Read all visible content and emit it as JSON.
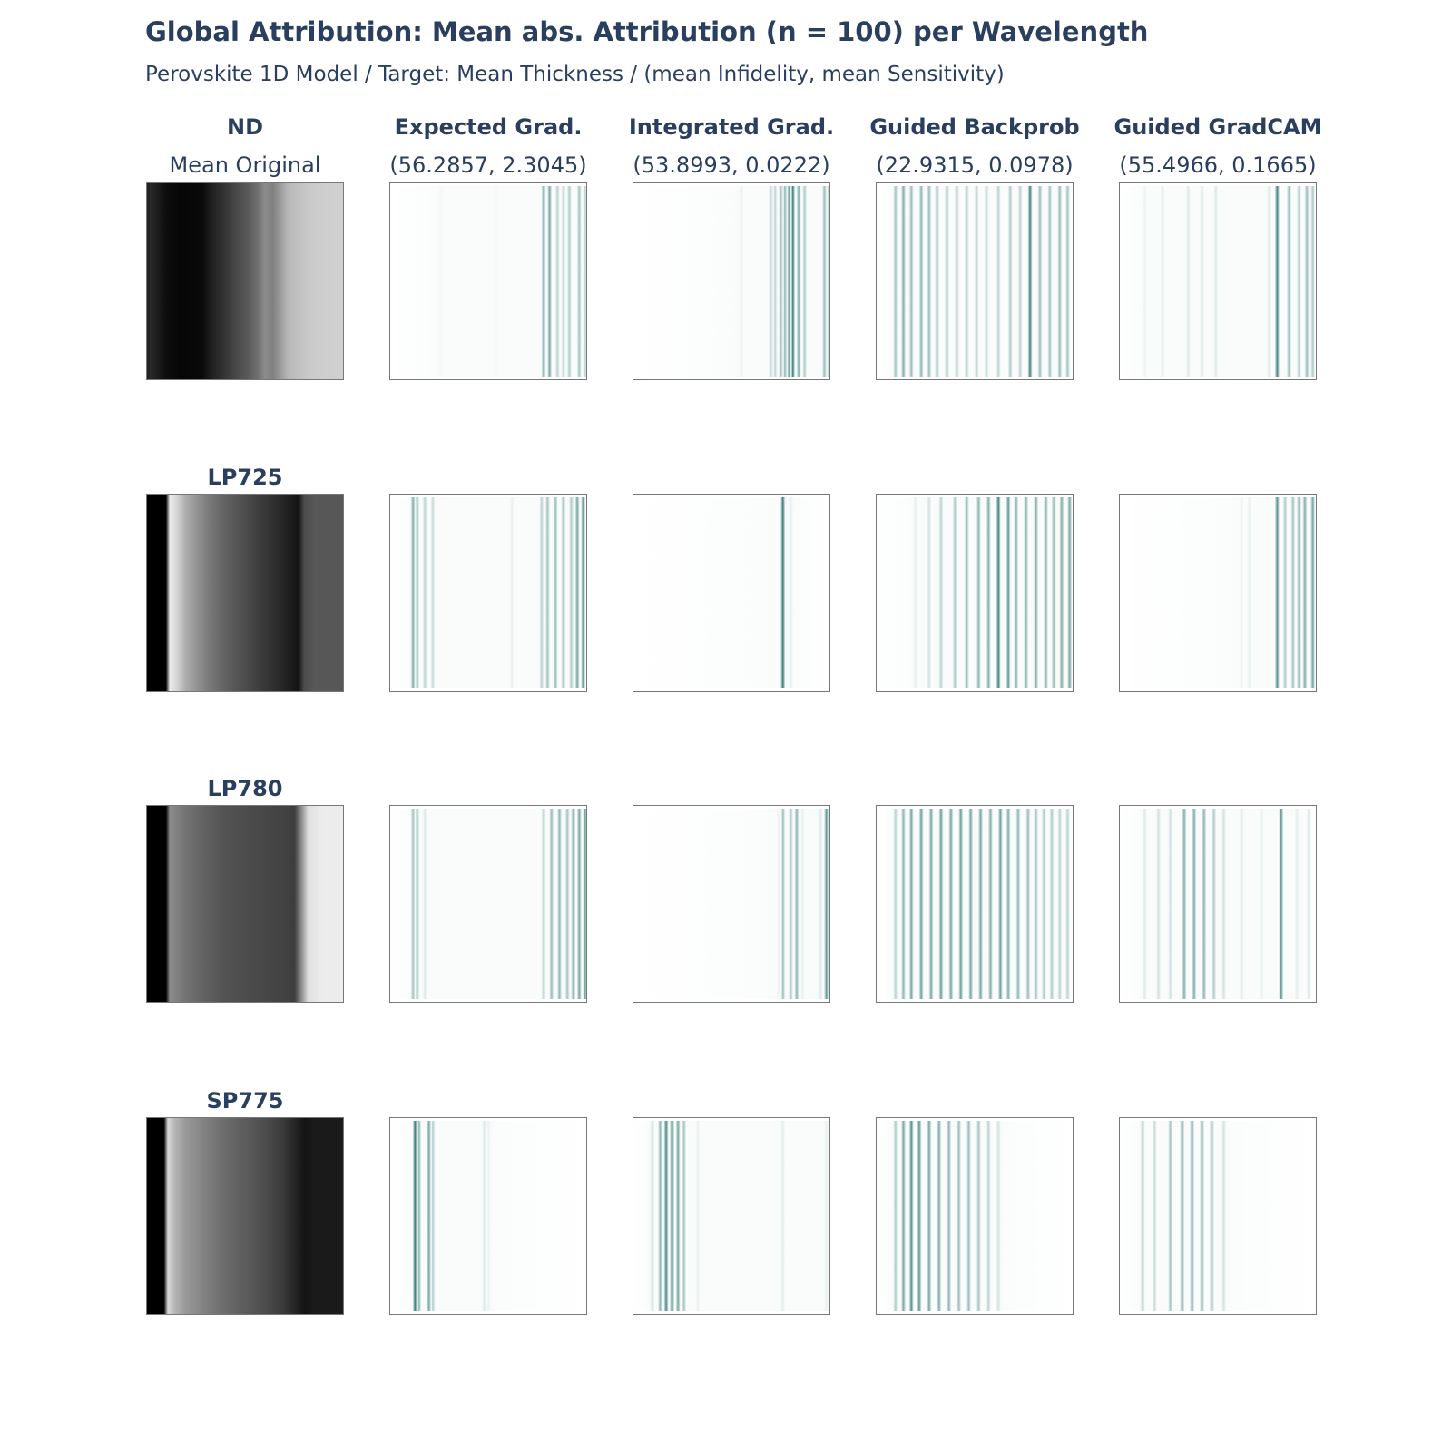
{
  "title": "Global Attribution: Mean abs. Attribution (n = 100) per Wavelength",
  "subtitle": "Perovskite 1D Model / Target: Mean Thickness / (mean Infidelity, mean Sensitivity)",
  "chart_data": {
    "type": "heatmap",
    "columns": [
      {
        "name": "ND",
        "metric": "Mean Original"
      },
      {
        "name": "Expected Grad.",
        "metric": "(56.2857, 2.3045)"
      },
      {
        "name": "Integrated Grad.",
        "metric": "(53.8993, 0.0222)"
      },
      {
        "name": "Guided Backprob",
        "metric": "(22.9315, 0.0978)"
      },
      {
        "name": "Guided GradCAM",
        "metric": "(55.4966, 0.1665)"
      }
    ],
    "rows": [
      "ND",
      "LP725",
      "LP780",
      "SP775"
    ],
    "colors": {
      "attribution": "#1a6b64",
      "original_dark": "#000000",
      "original_light": "#ffffff",
      "text": "#2a3f5f",
      "frame": "#777777"
    },
    "grid": false,
    "panels": [
      {
        "row": "ND",
        "original": [
          [
            0,
            0.1
          ],
          [
            0.02,
            0.16
          ],
          [
            0.05,
            0.12
          ],
          [
            0.1,
            0.05
          ],
          [
            0.18,
            0.02
          ],
          [
            0.28,
            0.04
          ],
          [
            0.35,
            0.15
          ],
          [
            0.45,
            0.28
          ],
          [
            0.52,
            0.36
          ],
          [
            0.57,
            0.45
          ],
          [
            0.6,
            0.55
          ],
          [
            0.64,
            0.5
          ],
          [
            0.72,
            0.72
          ],
          [
            0.79,
            0.77
          ],
          [
            0.85,
            0.8
          ],
          [
            1,
            0.82
          ]
        ],
        "expected_grad": [
          [
            0.26,
            0.05
          ],
          [
            0.54,
            0.04
          ],
          [
            0.78,
            0.55
          ],
          [
            0.81,
            0.6
          ],
          [
            0.85,
            0.3
          ],
          [
            0.88,
            0.25
          ],
          [
            0.91,
            0.35
          ],
          [
            0.96,
            0.4
          ],
          [
            0.99,
            0.3
          ]
        ],
        "integrated_grad": [
          [
            0.55,
            0.1
          ],
          [
            0.7,
            0.25
          ],
          [
            0.72,
            0.3
          ],
          [
            0.75,
            0.4
          ],
          [
            0.77,
            0.5
          ],
          [
            0.79,
            0.65
          ],
          [
            0.81,
            0.9
          ],
          [
            0.84,
            0.55
          ],
          [
            0.87,
            0.35
          ],
          [
            0.97,
            0.45
          ],
          [
            0.99,
            0.3
          ]
        ],
        "guided_backprob": [
          [
            0.1,
            0.4
          ],
          [
            0.14,
            0.55
          ],
          [
            0.18,
            0.45
          ],
          [
            0.23,
            0.5
          ],
          [
            0.27,
            0.45
          ],
          [
            0.31,
            0.4
          ],
          [
            0.36,
            0.35
          ],
          [
            0.41,
            0.32
          ],
          [
            0.46,
            0.3
          ],
          [
            0.51,
            0.28
          ],
          [
            0.56,
            0.25
          ],
          [
            0.62,
            0.3
          ],
          [
            0.68,
            0.35
          ],
          [
            0.73,
            0.3
          ],
          [
            0.78,
            0.85
          ],
          [
            0.83,
            0.45
          ],
          [
            0.88,
            0.4
          ],
          [
            0.93,
            0.45
          ],
          [
            0.97,
            0.4
          ]
        ],
        "guided_gradcam": [
          [
            0.13,
            0.08
          ],
          [
            0.22,
            0.12
          ],
          [
            0.35,
            0.15
          ],
          [
            0.42,
            0.15
          ],
          [
            0.49,
            0.15
          ],
          [
            0.76,
            0.15
          ],
          [
            0.8,
            0.85
          ],
          [
            0.86,
            0.45
          ],
          [
            0.91,
            0.3
          ],
          [
            0.95,
            0.45
          ],
          [
            0.98,
            0.35
          ]
        ]
      },
      {
        "row": "LP725",
        "original": [
          [
            0,
            0
          ],
          [
            0.1,
            0
          ],
          [
            0.12,
            0.92
          ],
          [
            0.15,
            0.85
          ],
          [
            0.2,
            0.68
          ],
          [
            0.3,
            0.5
          ],
          [
            0.4,
            0.38
          ],
          [
            0.5,
            0.3
          ],
          [
            0.6,
            0.22
          ],
          [
            0.7,
            0.14
          ],
          [
            0.77,
            0.08
          ],
          [
            0.8,
            0.3
          ],
          [
            0.85,
            0.34
          ],
          [
            1,
            0.34
          ]
        ],
        "expected_grad": [
          [
            0.12,
            0.55
          ],
          [
            0.14,
            0.45
          ],
          [
            0.18,
            0.3
          ],
          [
            0.22,
            0.25
          ],
          [
            0.62,
            0.1
          ],
          [
            0.77,
            0.3
          ],
          [
            0.8,
            0.4
          ],
          [
            0.84,
            0.45
          ],
          [
            0.88,
            0.4
          ],
          [
            0.92,
            0.35
          ],
          [
            0.95,
            0.6
          ],
          [
            0.98,
            0.7
          ]
        ],
        "integrated_grad": [
          [
            0.77,
            0.08
          ],
          [
            0.8,
            0.12
          ],
          [
            0.76,
            0.9
          ]
        ],
        "guided_backprob": [
          [
            0.2,
            0.1
          ],
          [
            0.27,
            0.2
          ],
          [
            0.33,
            0.3
          ],
          [
            0.4,
            0.35
          ],
          [
            0.46,
            0.45
          ],
          [
            0.52,
            0.5
          ],
          [
            0.57,
            0.55
          ],
          [
            0.62,
            0.85
          ],
          [
            0.67,
            0.7
          ],
          [
            0.71,
            0.5
          ],
          [
            0.76,
            0.5
          ],
          [
            0.81,
            0.55
          ],
          [
            0.86,
            0.5
          ],
          [
            0.9,
            0.45
          ],
          [
            0.94,
            0.55
          ],
          [
            0.98,
            0.6
          ]
        ],
        "guided_gradcam": [
          [
            0.62,
            0.08
          ],
          [
            0.66,
            0.1
          ],
          [
            0.8,
            0.75
          ],
          [
            0.84,
            0.35
          ],
          [
            0.88,
            0.4
          ],
          [
            0.91,
            0.45
          ],
          [
            0.94,
            0.55
          ],
          [
            0.98,
            0.6
          ]
        ]
      },
      {
        "row": "LP780",
        "original": [
          [
            0,
            0
          ],
          [
            0.1,
            0
          ],
          [
            0.12,
            0.55
          ],
          [
            0.2,
            0.45
          ],
          [
            0.3,
            0.38
          ],
          [
            0.4,
            0.32
          ],
          [
            0.5,
            0.3
          ],
          [
            0.6,
            0.28
          ],
          [
            0.7,
            0.26
          ],
          [
            0.75,
            0.24
          ],
          [
            0.78,
            0.5
          ],
          [
            0.82,
            0.88
          ],
          [
            0.88,
            0.92
          ],
          [
            1,
            0.93
          ]
        ],
        "expected_grad": [
          [
            0.12,
            0.4
          ],
          [
            0.14,
            0.45
          ],
          [
            0.18,
            0.15
          ],
          [
            0.78,
            0.3
          ],
          [
            0.82,
            0.45
          ],
          [
            0.86,
            0.5
          ],
          [
            0.9,
            0.4
          ],
          [
            0.93,
            0.5
          ],
          [
            0.96,
            0.6
          ],
          [
            0.99,
            0.65
          ]
        ],
        "integrated_grad": [
          [
            0.74,
            0.08
          ],
          [
            0.76,
            0.45
          ],
          [
            0.8,
            0.35
          ],
          [
            0.83,
            0.5
          ],
          [
            0.86,
            0.1
          ],
          [
            0.95,
            0.15
          ],
          [
            0.98,
            0.7
          ]
        ],
        "guided_backprob": [
          [
            0.1,
            0.3
          ],
          [
            0.14,
            0.5
          ],
          [
            0.18,
            0.6
          ],
          [
            0.23,
            0.65
          ],
          [
            0.28,
            0.6
          ],
          [
            0.33,
            0.65
          ],
          [
            0.38,
            0.6
          ],
          [
            0.43,
            0.65
          ],
          [
            0.48,
            0.6
          ],
          [
            0.53,
            0.6
          ],
          [
            0.58,
            0.55
          ],
          [
            0.63,
            0.65
          ],
          [
            0.67,
            0.55
          ],
          [
            0.72,
            0.5
          ],
          [
            0.77,
            0.45
          ],
          [
            0.81,
            0.4
          ],
          [
            0.85,
            0.35
          ],
          [
            0.89,
            0.35
          ],
          [
            0.93,
            0.3
          ],
          [
            0.97,
            0.3
          ]
        ],
        "guided_gradcam": [
          [
            0.13,
            0.15
          ],
          [
            0.2,
            0.2
          ],
          [
            0.26,
            0.2
          ],
          [
            0.33,
            0.55
          ],
          [
            0.38,
            0.55
          ],
          [
            0.43,
            0.5
          ],
          [
            0.48,
            0.35
          ],
          [
            0.53,
            0.2
          ],
          [
            0.62,
            0.12
          ],
          [
            0.72,
            0.12
          ],
          [
            0.82,
            0.7
          ],
          [
            0.9,
            0.12
          ],
          [
            0.96,
            0.15
          ]
        ]
      },
      {
        "row": "SP775",
        "original": [
          [
            0,
            0
          ],
          [
            0.09,
            0
          ],
          [
            0.11,
            0.85
          ],
          [
            0.14,
            0.72
          ],
          [
            0.2,
            0.6
          ],
          [
            0.3,
            0.5
          ],
          [
            0.4,
            0.42
          ],
          [
            0.5,
            0.36
          ],
          [
            0.6,
            0.3
          ],
          [
            0.7,
            0.22
          ],
          [
            0.77,
            0.12
          ],
          [
            0.8,
            0.08
          ],
          [
            0.85,
            0.1
          ],
          [
            1,
            0.1
          ]
        ],
        "expected_grad": [
          [
            0.13,
            0.9
          ],
          [
            0.15,
            0.5
          ],
          [
            0.2,
            0.6
          ],
          [
            0.22,
            0.35
          ],
          [
            0.48,
            0.15
          ],
          [
            0.5,
            0.1
          ]
        ],
        "integrated_grad": [
          [
            0.1,
            0.2
          ],
          [
            0.14,
            0.5
          ],
          [
            0.17,
            0.8
          ],
          [
            0.2,
            0.75
          ],
          [
            0.23,
            0.6
          ],
          [
            0.26,
            0.4
          ],
          [
            0.33,
            0.1
          ],
          [
            0.76,
            0.12
          ],
          [
            0.98,
            0.1
          ]
        ],
        "guided_backprob": [
          [
            0.1,
            0.35
          ],
          [
            0.14,
            0.6
          ],
          [
            0.18,
            0.75
          ],
          [
            0.22,
            0.7
          ],
          [
            0.27,
            0.6
          ],
          [
            0.32,
            0.55
          ],
          [
            0.37,
            0.5
          ],
          [
            0.42,
            0.45
          ],
          [
            0.47,
            0.45
          ],
          [
            0.52,
            0.4
          ],
          [
            0.57,
            0.3
          ],
          [
            0.62,
            0.2
          ]
        ],
        "guided_gradcam": [
          [
            0.12,
            0.3
          ],
          [
            0.18,
            0.25
          ],
          [
            0.26,
            0.4
          ],
          [
            0.32,
            0.55
          ],
          [
            0.37,
            0.55
          ],
          [
            0.42,
            0.5
          ],
          [
            0.47,
            0.4
          ],
          [
            0.53,
            0.2
          ]
        ]
      }
    ]
  }
}
